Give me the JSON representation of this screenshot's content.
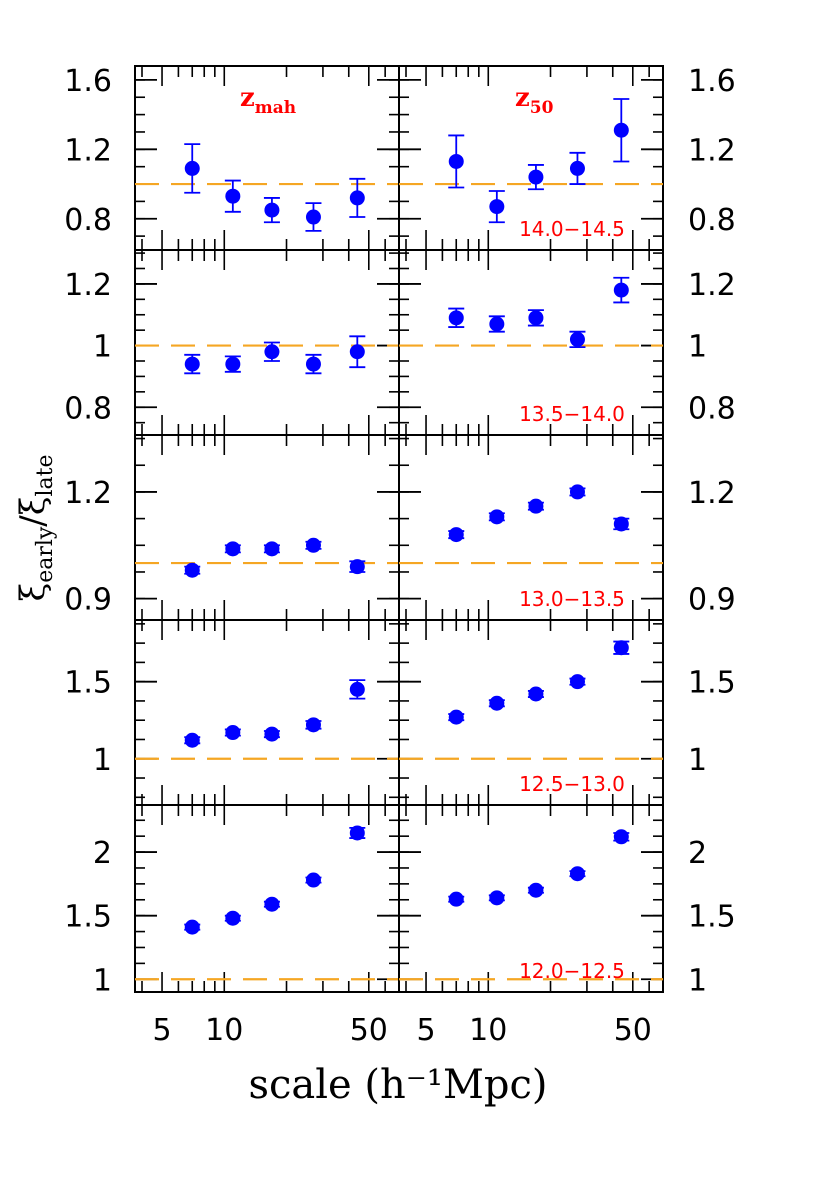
{
  "chart_data": {
    "type": "scatter",
    "xlabel": "scale (h⁻¹Mpc)",
    "ylabel_main": "ξ",
    "ylabel_sub1": "early",
    "ylabel_sep": "/",
    "ylabel_sub2": "late",
    "x_scale": "log",
    "xlim": [
      3.7,
      70
    ],
    "x_tick_labels": [
      "5",
      "10",
      "50"
    ],
    "x_tick_values": [
      5,
      10,
      50
    ],
    "columns": [
      {
        "label_main": "z",
        "label_sub": "mah"
      },
      {
        "label_main": "z",
        "label_sub": "50"
      }
    ],
    "reference_line": 1,
    "reference_color": "#f5a623",
    "marker_color": "#0000ff",
    "label_color": "#ff0000",
    "x": [
      7,
      11,
      17,
      27,
      44
    ],
    "rows": [
      {
        "mass_range": "14.0−14.5",
        "ylim": [
          0.62,
          1.68
        ],
        "yticks": [
          0.8,
          1.2,
          1.6
        ],
        "yticklabels": [
          "0.8",
          "1.2",
          "1.6"
        ],
        "panels": [
          {
            "y": [
              1.09,
              0.93,
              0.85,
              0.81,
              0.92
            ],
            "err": [
              0.14,
              0.09,
              0.07,
              0.08,
              0.11
            ]
          },
          {
            "y": [
              1.13,
              0.87,
              1.04,
              1.09,
              1.31
            ],
            "err": [
              0.15,
              0.09,
              0.07,
              0.09,
              0.18
            ]
          }
        ]
      },
      {
        "mass_range": "13.5−14.0",
        "ylim": [
          0.71,
          1.31
        ],
        "yticks": [
          0.8,
          1.0,
          1.2
        ],
        "yticklabels": [
          "0.8",
          "1",
          "1.2"
        ],
        "panels": [
          {
            "y": [
              0.94,
              0.94,
              0.98,
              0.94,
              0.98
            ],
            "err": [
              0.03,
              0.025,
              0.03,
              0.03,
              0.05
            ]
          },
          {
            "y": [
              1.09,
              1.07,
              1.09,
              1.02,
              1.18
            ],
            "err": [
              0.03,
              0.025,
              0.025,
              0.025,
              0.04
            ]
          }
        ]
      },
      {
        "mass_range": "13.0−13.5",
        "ylim": [
          0.84,
          1.36
        ],
        "yticks": [
          0.9,
          1.2
        ],
        "yticklabels": [
          "0.9",
          "1.2"
        ],
        "panels": [
          {
            "y": [
              0.98,
              1.04,
              1.04,
              1.05,
              0.99
            ],
            "err": [
              0.01,
              0.01,
              0.01,
              0.01,
              0.015
            ]
          },
          {
            "y": [
              1.08,
              1.13,
              1.16,
              1.2,
              1.11
            ],
            "err": [
              0.01,
              0.01,
              0.01,
              0.01,
              0.015
            ]
          }
        ]
      },
      {
        "mass_range": "12.5−13.0",
        "ylim": [
          0.7,
          1.9
        ],
        "yticks": [
          1.0,
          1.5
        ],
        "yticklabels": [
          "1",
          "1.5"
        ],
        "panels": [
          {
            "y": [
              1.12,
              1.17,
              1.16,
              1.22,
              1.45
            ],
            "err": [
              0.02,
              0.02,
              0.02,
              0.025,
              0.06
            ]
          },
          {
            "y": [
              1.27,
              1.36,
              1.42,
              1.5,
              1.72
            ],
            "err": [
              0.02,
              0.02,
              0.02,
              0.02,
              0.04
            ]
          }
        ]
      },
      {
        "mass_range": "12.0−12.5",
        "ylim": [
          0.9,
          2.37
        ],
        "yticks": [
          1.0,
          1.5,
          2.0
        ],
        "yticklabels": [
          "1",
          "1.5",
          "2"
        ],
        "panels": [
          {
            "y": [
              1.41,
              1.48,
              1.59,
              1.78,
              2.15
            ],
            "err": [
              0.02,
              0.02,
              0.02,
              0.02,
              0.04
            ]
          },
          {
            "y": [
              1.63,
              1.64,
              1.7,
              1.83,
              2.12
            ],
            "err": [
              0.02,
              0.02,
              0.02,
              0.02,
              0.03
            ]
          }
        ]
      }
    ]
  }
}
